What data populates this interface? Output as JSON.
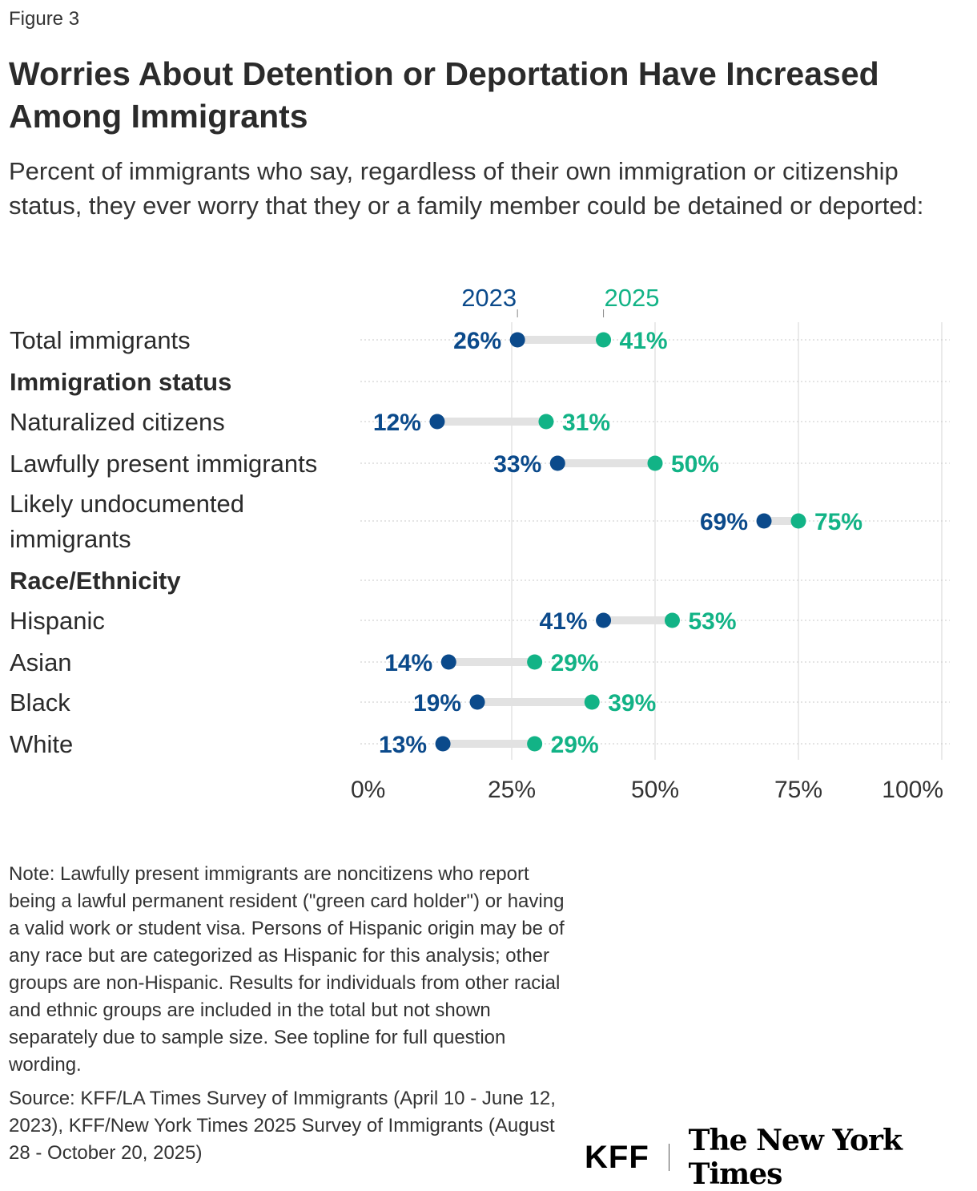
{
  "figure_label": "Figure 3",
  "title": "Worries About Detention or Deportation Have Increased Among Immigrants",
  "subtitle": "Percent of immigrants who say, regardless of their own immigration or citizenship status, they ever worry that they or a family member could be detained or deported:",
  "chart_data": {
    "type": "dumbbell",
    "series": [
      {
        "name": "2023",
        "color": "#0b4a8b"
      },
      {
        "name": "2025",
        "color": "#12b386"
      }
    ],
    "xlim": [
      0,
      100
    ],
    "x_ticks": [
      "0%",
      "25%",
      "50%",
      "75%",
      "100%"
    ],
    "grid": true,
    "rows": [
      {
        "label": "Total immigrants",
        "v2023": 26,
        "v2025": 41,
        "l2023": "26%",
        "l2025": "41%"
      },
      {
        "label": "Immigration status",
        "header": true
      },
      {
        "label": "Naturalized citizens",
        "v2023": 12,
        "v2025": 31,
        "l2023": "12%",
        "l2025": "31%"
      },
      {
        "label": "Lawfully present immigrants",
        "v2023": 33,
        "v2025": 50,
        "l2023": "33%",
        "l2025": "50%"
      },
      {
        "label": "Likely undocumented immigrants",
        "v2023": 69,
        "v2025": 75,
        "l2023": "69%",
        "l2025": "75%"
      },
      {
        "label": "Race/Ethnicity",
        "header": true
      },
      {
        "label": "Hispanic",
        "v2023": 41,
        "v2025": 53,
        "l2023": "41%",
        "l2025": "53%"
      },
      {
        "label": "Asian",
        "v2023": 14,
        "v2025": 29,
        "l2023": "14%",
        "l2025": "29%"
      },
      {
        "label": "Black",
        "v2023": 19,
        "v2025": 39,
        "l2023": "19%",
        "l2025": "39%"
      },
      {
        "label": "White",
        "v2023": 13,
        "v2025": 29,
        "l2023": "13%",
        "l2025": "29%"
      }
    ]
  },
  "note": "Note: Lawfully present immigrants are noncitizens who report being a lawful permanent resident (\"green card holder\") or having a valid work or student visa. Persons of Hispanic origin may be of any race but are categorized as Hispanic for this analysis; other groups are non-Hispanic. Results for individuals from other racial and ethnic groups are included in the total but not shown separately due to sample size. See topline for full question wording.",
  "source": "Source: KFF/LA Times Survey of Immigrants (April 10 - June 12, 2023), KFF/New York Times 2025 Survey of Immigrants (August 28 - October 20, 2025)",
  "logos": {
    "kff": "KFF",
    "nyt": "The New York Times"
  }
}
